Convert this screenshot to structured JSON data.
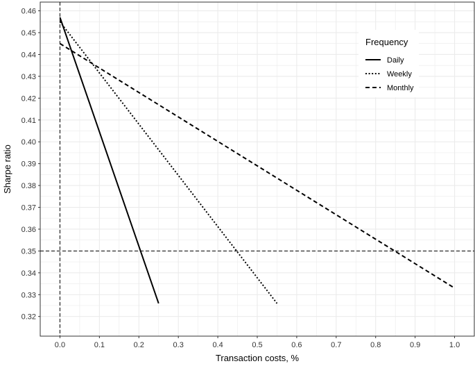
{
  "chart_data": {
    "type": "line",
    "xlabel": "Transaction costs, %",
    "ylabel": "Sharpe ratio",
    "xlim": [
      -0.05,
      1.05
    ],
    "ylim": [
      0.311,
      0.464
    ],
    "xticks": [
      0.0,
      0.1,
      0.2,
      0.3,
      0.4,
      0.5,
      0.6,
      0.7,
      0.8,
      0.9,
      1.0
    ],
    "xtick_labels": [
      "0.0",
      "0.1",
      "0.2",
      "0.3",
      "0.4",
      "0.5",
      "0.6",
      "0.7",
      "0.8",
      "0.9",
      "1.0"
    ],
    "yticks": [
      0.32,
      0.33,
      0.34,
      0.35,
      0.36,
      0.37,
      0.38,
      0.39,
      0.4,
      0.41,
      0.42,
      0.43,
      0.44,
      0.45,
      0.46
    ],
    "ytick_labels": [
      "0.32",
      "0.33",
      "0.34",
      "0.35",
      "0.36",
      "0.37",
      "0.38",
      "0.39",
      "0.40",
      "0.41",
      "0.42",
      "0.43",
      "0.44",
      "0.45",
      "0.46"
    ],
    "grid": true,
    "legend": {
      "title": "Frequency",
      "position": "top-right"
    },
    "series": [
      {
        "name": "Daily",
        "linestyle": "solid",
        "x": [
          0.0,
          0.25
        ],
        "y": [
          0.457,
          0.326
        ]
      },
      {
        "name": "Weekly",
        "linestyle": "dotted",
        "x": [
          0.0,
          0.55
        ],
        "y": [
          0.455,
          0.326
        ]
      },
      {
        "name": "Monthly",
        "linestyle": "dashed",
        "x": [
          0.0,
          1.0
        ],
        "y": [
          0.445,
          0.333
        ]
      }
    ],
    "reference_lines": [
      {
        "axis": "x",
        "value": 0.0,
        "linestyle": "dashed"
      },
      {
        "axis": "y",
        "value": 0.35,
        "linestyle": "dashed"
      }
    ],
    "colors": {
      "background": "#ffffff",
      "grid": "#ebebeb",
      "line": "#000000",
      "tick_text": "#333333"
    }
  }
}
